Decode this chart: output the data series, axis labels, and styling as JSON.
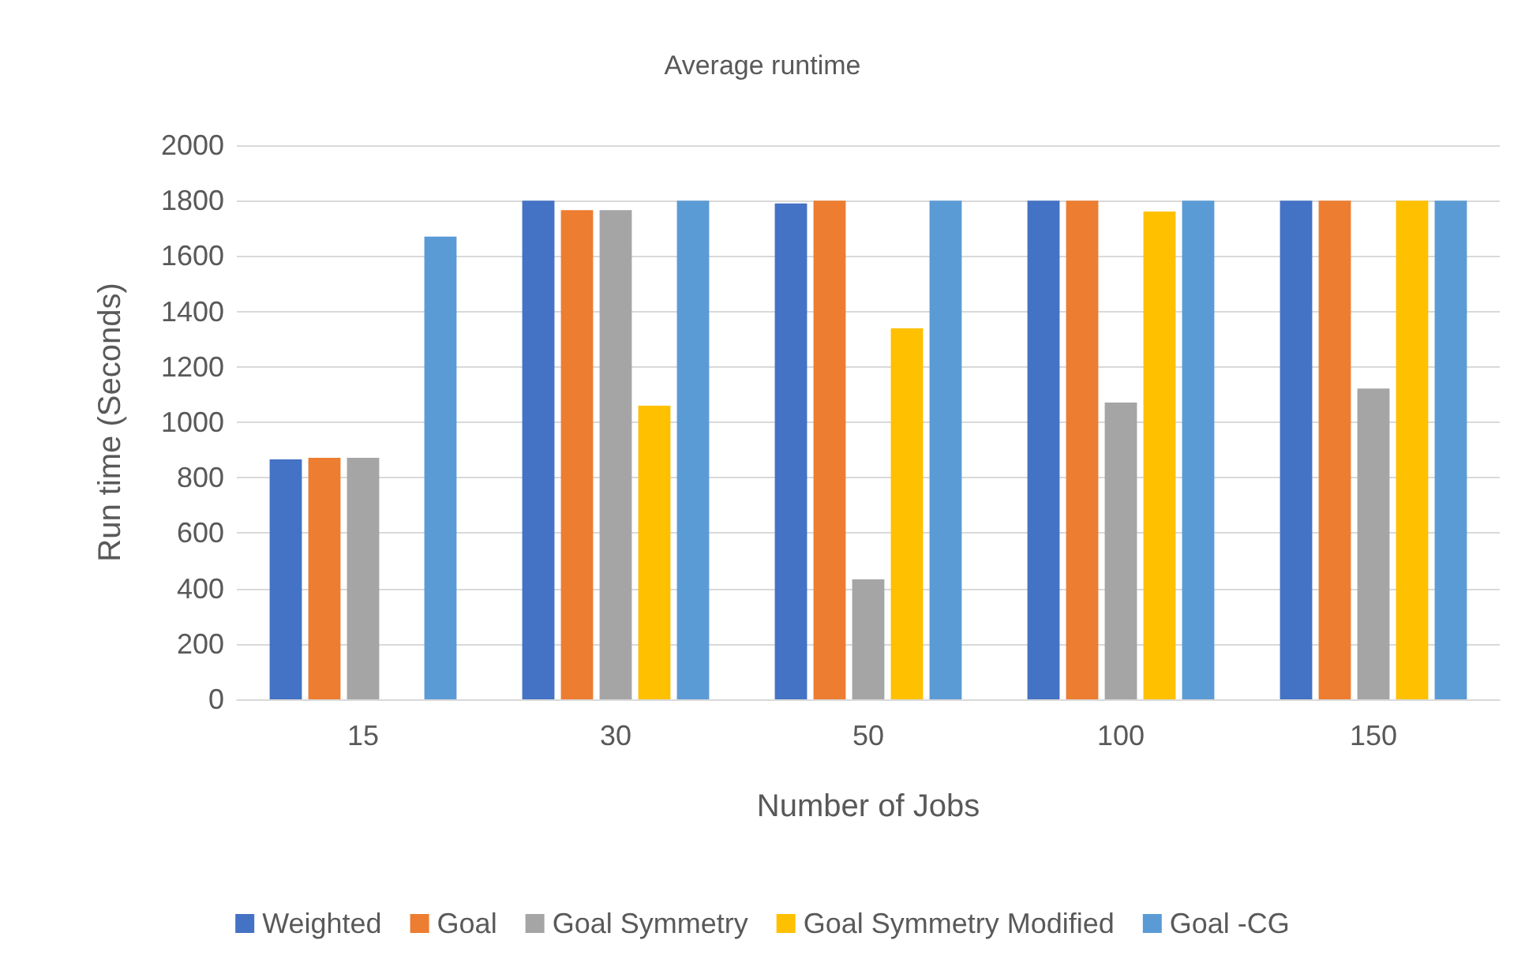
{
  "chart_data": {
    "type": "bar",
    "title": "Average runtime",
    "xlabel": "Number of Jobs",
    "ylabel": "Run time (Seconds)",
    "categories": [
      "15",
      "30",
      "50",
      "100",
      "150"
    ],
    "series": [
      {
        "name": "Weighted",
        "color": "#4472c4",
        "values": [
          866,
          1800,
          1790,
          1800,
          1800
        ]
      },
      {
        "name": "Goal",
        "color": "#ed7d31",
        "values": [
          872,
          1766,
          1800,
          1800,
          1800
        ]
      },
      {
        "name": "Goal Symmetry",
        "color": "#a5a5a5",
        "values": [
          872,
          1766,
          433,
          1071,
          1122
        ]
      },
      {
        "name": "Goal Symmetry Modified",
        "color": "#ffc000",
        "values": [
          null,
          1060,
          1339,
          1761,
          1800
        ]
      },
      {
        "name": "Goal -CG",
        "color": "#5b9bd5",
        "values": [
          1670,
          1800,
          1800,
          1800,
          1800
        ]
      }
    ],
    "ylim": [
      0,
      2000
    ],
    "yticks": [
      0,
      200,
      400,
      600,
      800,
      1000,
      1200,
      1400,
      1600,
      1800,
      2000
    ],
    "grid": "y",
    "legend": "bottom"
  }
}
